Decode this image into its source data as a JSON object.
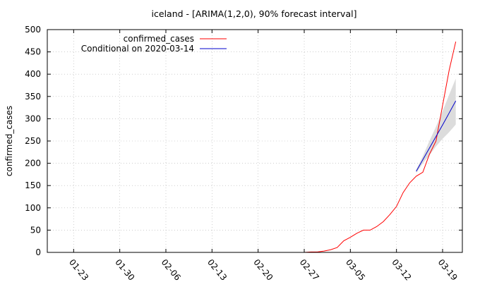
{
  "chart_data": {
    "type": "line",
    "title": "iceland -  [ARIMA(1,2,0), 90% forecast interval]",
    "xlabel": "",
    "ylabel": "confirmed_cases",
    "ylim": [
      0,
      500
    ],
    "yticks": [
      0,
      50,
      100,
      150,
      200,
      250,
      300,
      350,
      400,
      450,
      500
    ],
    "xlim": [
      "2020-01-19",
      "2020-03-22"
    ],
    "xticks": [
      "2020-01-23",
      "2020-01-30",
      "2020-02-06",
      "2020-02-13",
      "2020-02-20",
      "2020-02-27",
      "2020-03-05",
      "2020-03-12",
      "2020-03-19"
    ],
    "xtick_labels": [
      "01-23",
      "01-30",
      "02-06",
      "02-13",
      "02-20",
      "02-27",
      "03-05",
      "03-12",
      "03-19"
    ],
    "grid": true,
    "legend_position": "top-left",
    "series": [
      {
        "name": "confirmed_cases",
        "color": "#ff0000",
        "points": [
          [
            "2020-01-22",
            0
          ],
          [
            "2020-01-23",
            0
          ],
          [
            "2020-01-24",
            0
          ],
          [
            "2020-01-25",
            0
          ],
          [
            "2020-01-26",
            0
          ],
          [
            "2020-01-27",
            0
          ],
          [
            "2020-01-28",
            0
          ],
          [
            "2020-01-29",
            0
          ],
          [
            "2020-01-30",
            0
          ],
          [
            "2020-01-31",
            0
          ],
          [
            "2020-02-01",
            0
          ],
          [
            "2020-02-02",
            0
          ],
          [
            "2020-02-03",
            0
          ],
          [
            "2020-02-04",
            0
          ],
          [
            "2020-02-05",
            0
          ],
          [
            "2020-02-06",
            0
          ],
          [
            "2020-02-07",
            0
          ],
          [
            "2020-02-08",
            0
          ],
          [
            "2020-02-09",
            0
          ],
          [
            "2020-02-10",
            0
          ],
          [
            "2020-02-11",
            0
          ],
          [
            "2020-02-12",
            0
          ],
          [
            "2020-02-13",
            0
          ],
          [
            "2020-02-14",
            0
          ],
          [
            "2020-02-15",
            0
          ],
          [
            "2020-02-16",
            0
          ],
          [
            "2020-02-17",
            0
          ],
          [
            "2020-02-18",
            0
          ],
          [
            "2020-02-19",
            0
          ],
          [
            "2020-02-20",
            0
          ],
          [
            "2020-02-21",
            0
          ],
          [
            "2020-02-22",
            0
          ],
          [
            "2020-02-23",
            0
          ],
          [
            "2020-02-24",
            0
          ],
          [
            "2020-02-25",
            0
          ],
          [
            "2020-02-26",
            0
          ],
          [
            "2020-02-27",
            0
          ],
          [
            "2020-02-28",
            1
          ],
          [
            "2020-02-29",
            1
          ],
          [
            "2020-03-01",
            3
          ],
          [
            "2020-03-02",
            6
          ],
          [
            "2020-03-03",
            11
          ],
          [
            "2020-03-04",
            26
          ],
          [
            "2020-03-05",
            34
          ],
          [
            "2020-03-06",
            43
          ],
          [
            "2020-03-07",
            50
          ],
          [
            "2020-03-08",
            50
          ],
          [
            "2020-03-09",
            58
          ],
          [
            "2020-03-10",
            69
          ],
          [
            "2020-03-11",
            85
          ],
          [
            "2020-03-12",
            103
          ],
          [
            "2020-03-13",
            134
          ],
          [
            "2020-03-14",
            156
          ],
          [
            "2020-03-15",
            171
          ],
          [
            "2020-03-16",
            180
          ],
          [
            "2020-03-17",
            220
          ],
          [
            "2020-03-18",
            250
          ],
          [
            "2020-03-19",
            330
          ],
          [
            "2020-03-20",
            409
          ],
          [
            "2020-03-21",
            473
          ]
        ]
      },
      {
        "name": "Conditional on 2020-03-14",
        "color": "#0000cc",
        "points": [
          [
            "2020-03-15",
            182
          ],
          [
            "2020-03-16",
            208
          ],
          [
            "2020-03-17",
            234
          ],
          [
            "2020-03-18",
            260
          ],
          [
            "2020-03-19",
            286
          ],
          [
            "2020-03-20",
            313
          ],
          [
            "2020-03-21",
            340
          ]
        ],
        "interval_color": "#dcdcdc",
        "interval_lower": [
          178,
          200,
          218,
          238,
          255,
          270,
          287
        ],
        "interval_upper": [
          186,
          216,
          250,
          282,
          317,
          354,
          390
        ]
      }
    ]
  }
}
